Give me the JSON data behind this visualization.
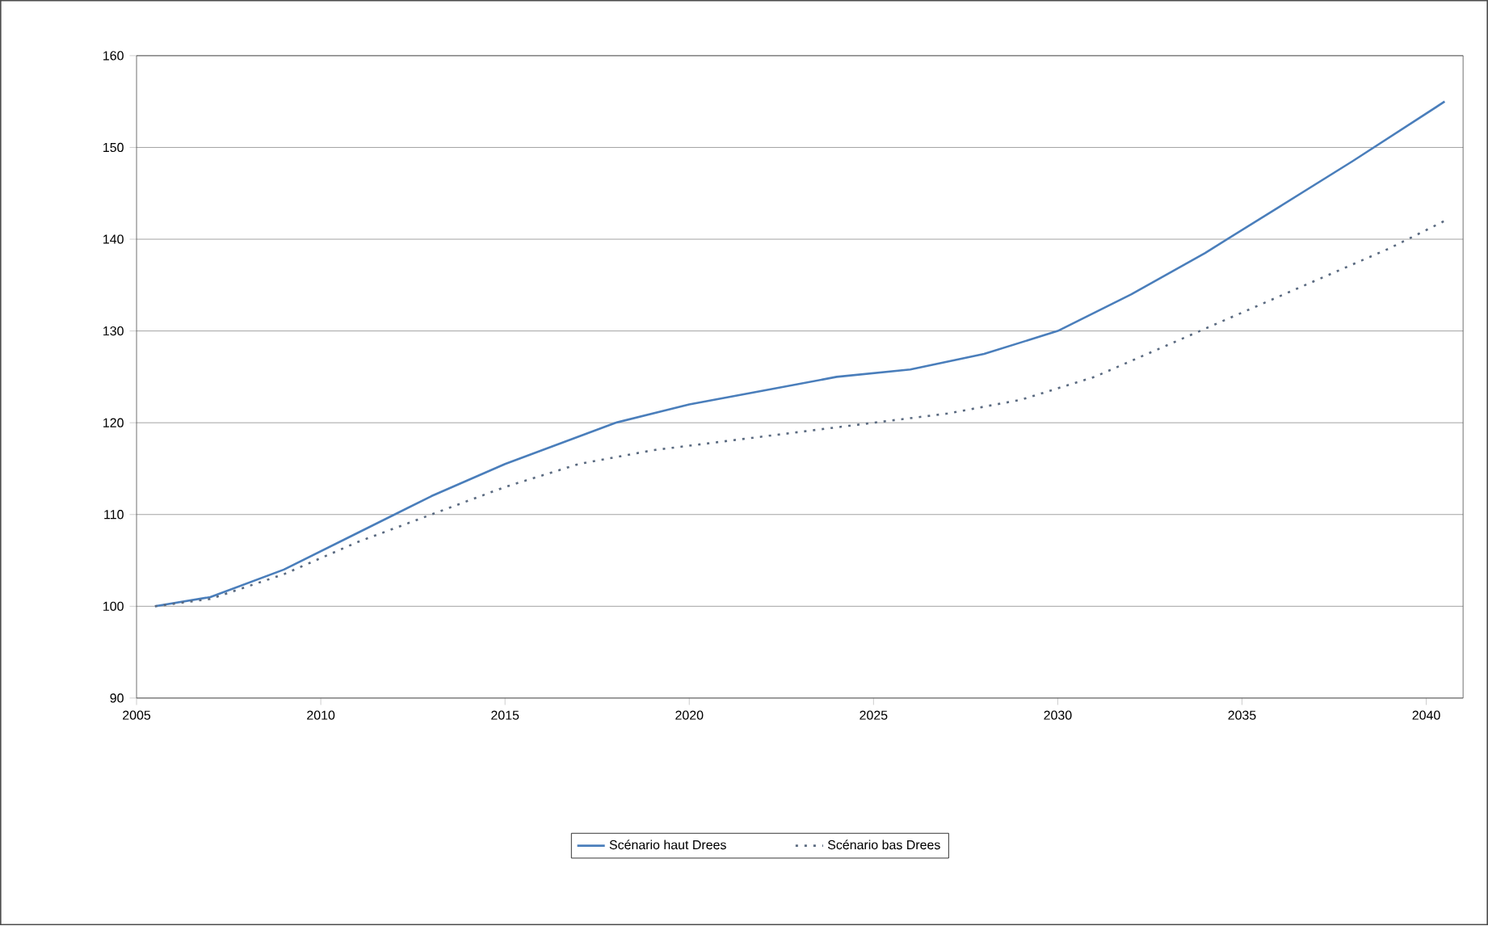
{
  "chart_data": {
    "type": "line",
    "xlim": [
      2005,
      2041
    ],
    "ylim": [
      90,
      160
    ],
    "xticks": [
      2005,
      2010,
      2015,
      2020,
      2025,
      2030,
      2035,
      2040
    ],
    "yticks": [
      90,
      100,
      110,
      120,
      130,
      140,
      150,
      160
    ],
    "grid": "y",
    "legend": "bottom",
    "marker": "none",
    "series": [
      {
        "name": "Scénario haut Drees",
        "color": "#4a7ebb",
        "line_style": "solid",
        "x": [
          2005.5,
          2007,
          2009,
          2011,
          2013,
          2015,
          2017,
          2018,
          2020,
          2022,
          2024,
          2026,
          2028,
          2030,
          2032,
          2034,
          2036,
          2038,
          2040.5
        ],
        "values": [
          100,
          101,
          104,
          108,
          112,
          115.5,
          118.5,
          120,
          122,
          123.5,
          125,
          125.8,
          127.5,
          130,
          134,
          138.5,
          143.5,
          148.5,
          155
        ]
      },
      {
        "name": "Scénario bas Drees",
        "color": "#5a6a80",
        "line_style": "dotted",
        "x": [
          2005.5,
          2007,
          2009,
          2011,
          2013,
          2015,
          2017,
          2019,
          2021,
          2023,
          2025,
          2027,
          2029,
          2031,
          2033,
          2035,
          2037,
          2039,
          2040.5
        ],
        "values": [
          100,
          100.8,
          103.5,
          107,
          110,
          113,
          115.5,
          117,
          118,
          119,
          120,
          121,
          122.5,
          125,
          128.5,
          132,
          135.5,
          139,
          142
        ]
      }
    ]
  }
}
